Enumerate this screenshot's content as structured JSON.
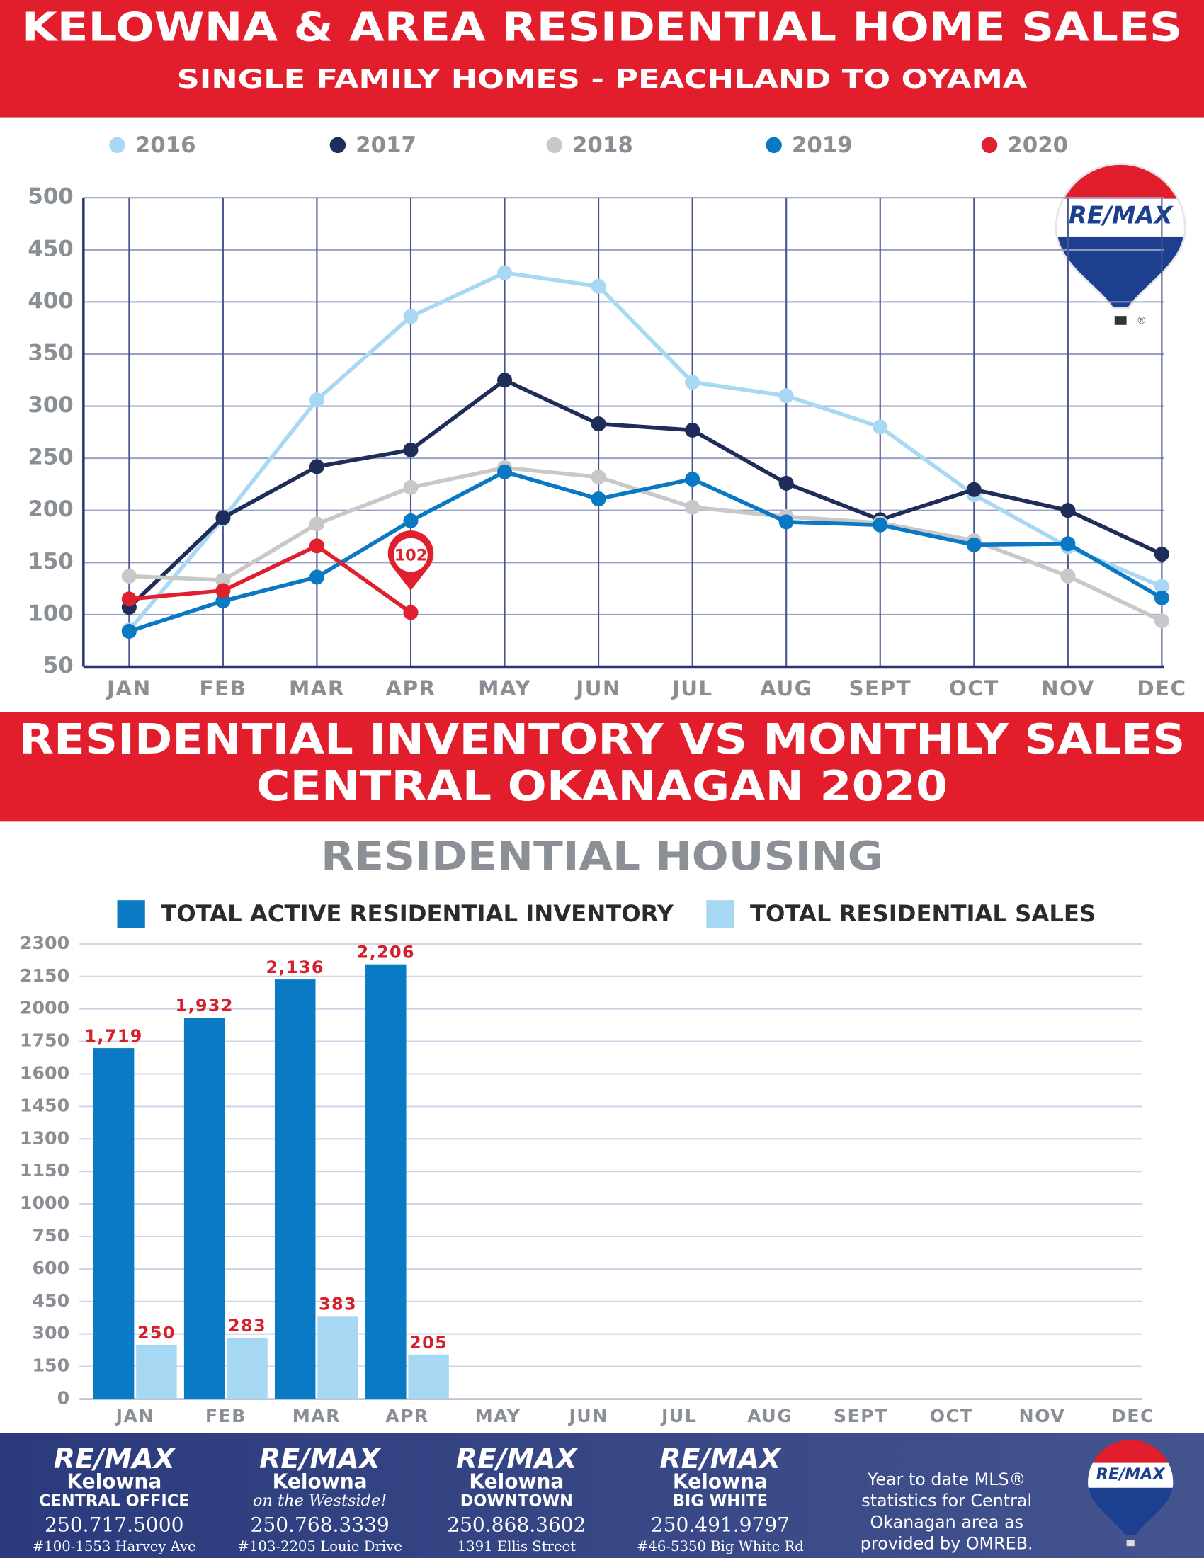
{
  "chart_data": [
    {
      "type": "line",
      "title": "KELOWNA & AREA RESIDENTIAL HOME SALES",
      "subtitle": "SINGLE FAMILY HOMES - PEACHLAND TO OYAMA",
      "categories": [
        "JAN",
        "FEB",
        "MAR",
        "APR",
        "MAY",
        "JUN",
        "JUL",
        "AUG",
        "SEPT",
        "OCT",
        "NOV",
        "DEC"
      ],
      "series": [
        {
          "name": "2016",
          "color": "#a8d8f3",
          "values": [
            85,
            192,
            306,
            386,
            428,
            415,
            323,
            310,
            280,
            215,
            165,
            127
          ]
        },
        {
          "name": "2017",
          "color": "#1f2d5a",
          "values": [
            107,
            193,
            242,
            258,
            325,
            283,
            277,
            226,
            191,
            220,
            200,
            158
          ]
        },
        {
          "name": "2018",
          "color": "#c8c8c8",
          "values": [
            137,
            133,
            187,
            222,
            241,
            232,
            203,
            194,
            188,
            171,
            137,
            94
          ]
        },
        {
          "name": "2019",
          "color": "#0a78c2",
          "values": [
            84,
            113,
            136,
            190,
            237,
            211,
            230,
            189,
            186,
            167,
            168,
            116
          ]
        },
        {
          "name": "2020",
          "color": "#e0202e",
          "values": [
            115,
            123,
            166,
            102,
            null,
            null,
            null,
            null,
            null,
            null,
            null,
            null
          ]
        }
      ],
      "ylim": [
        50,
        500
      ],
      "yticks": [
        50,
        100,
        150,
        200,
        250,
        300,
        350,
        400,
        450,
        500
      ],
      "grid": true
    },
    {
      "type": "bar",
      "title": "RESIDENTIAL HOUSING",
      "categories": [
        "JAN",
        "FEB",
        "MAR",
        "APR",
        "MAY",
        "JUN",
        "JUL",
        "AUG",
        "SEPT",
        "OCT",
        "NOV",
        "DEC"
      ],
      "series": [
        {
          "name": "TOTAL ACTIVE RESIDENTIAL INVENTORY",
          "color": "#0a7ac4",
          "values": [
            1719,
            1932,
            2136,
            2206,
            null,
            null,
            null,
            null,
            null,
            null,
            null,
            null
          ],
          "value_labels": [
            "1,719",
            "1,932",
            "2,136",
            "2,206",
            null,
            null,
            null,
            null,
            null,
            null,
            null,
            null
          ]
        },
        {
          "name": "TOTAL RESIDENTIAL SALES",
          "color": "#a6d8f4",
          "values": [
            250,
            283,
            383,
            205,
            null,
            null,
            null,
            null,
            null,
            null,
            null,
            null
          ]
        }
      ],
      "ylim": [
        0,
        2300
      ],
      "yticks": [
        0,
        150,
        300,
        450,
        600,
        750,
        1000,
        1150,
        1300,
        1450,
        1600,
        1750,
        2000,
        2150,
        2300
      ],
      "grid": true
    }
  ],
  "banner": {
    "title": "RESIDENTIAL INVENTORY VS MONTHLY SALES",
    "subtitle": "CENTRAL OKANAGAN 2020"
  },
  "logo": {
    "text": "RE/MAX",
    "mark": "®"
  },
  "footer": {
    "offices": [
      {
        "brand": "RE/MAX",
        "name": "Kelowna",
        "tagline": "CENTRAL OFFICE",
        "phone": "250.717.5000",
        "address": "#100-1553 Harvey Ave"
      },
      {
        "brand": "RE/MAX",
        "name": "Kelowna",
        "tagline": "on the Westside!",
        "phone": "250.768.3339",
        "address": "#103-2205 Louie Drive"
      },
      {
        "brand": "RE/MAX",
        "name": "Kelowna",
        "tagline": "DOWNTOWN",
        "phone": "250.868.3602",
        "address": "1391 Ellis Street"
      },
      {
        "brand": "RE/MAX",
        "name": "Kelowna",
        "tagline": "BIG WHITE",
        "phone": "250.491.9797",
        "address": "#46-5350 Big White Rd"
      }
    ],
    "note_lines": [
      "Year to date MLS®",
      "statistics for Central",
      "Okanagan area as",
      "provided by OMREB."
    ]
  }
}
